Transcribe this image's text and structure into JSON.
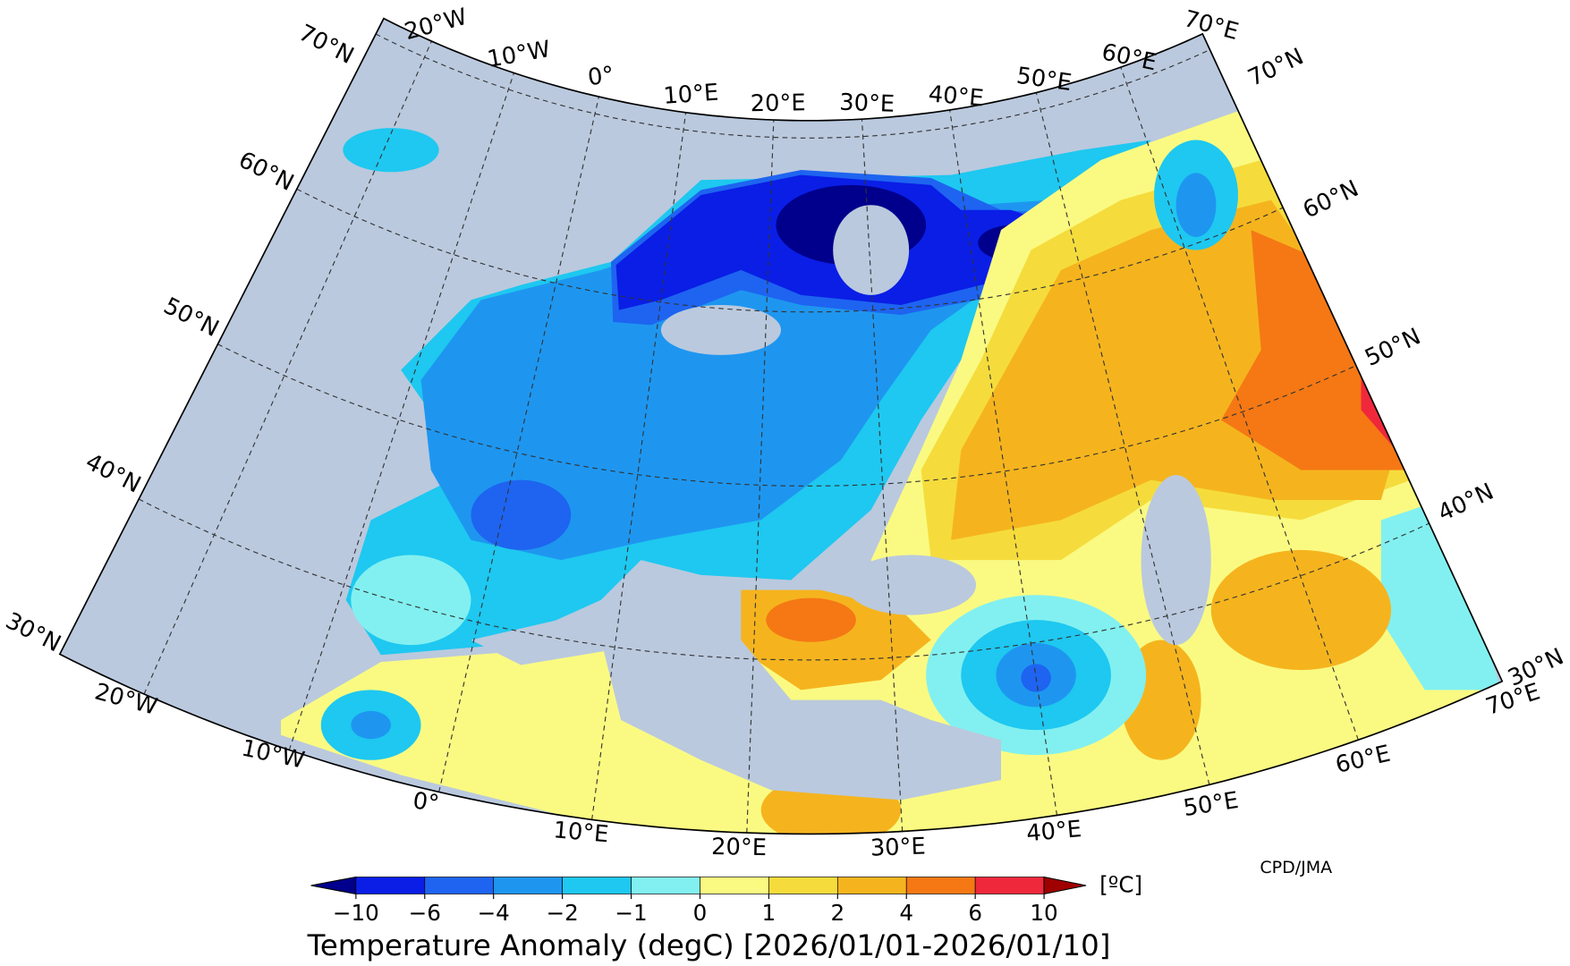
{
  "map": {
    "top_longitude_labels": [
      "20°W",
      "10°W",
      "0°",
      "10°E",
      "20°E",
      "30°E",
      "40°E",
      "50°E",
      "60°E",
      "70°E"
    ],
    "bottom_longitude_labels": [
      "20°W",
      "10°W",
      "0°",
      "10°E",
      "20°E",
      "30°E",
      "40°E",
      "50°E",
      "60°E",
      "70°E"
    ],
    "left_latitude_labels": [
      "70°N",
      "60°N",
      "50°N",
      "40°N",
      "30°N"
    ],
    "right_latitude_labels": [
      "70°N",
      "60°N",
      "50°N",
      "40°N",
      "30°N"
    ]
  },
  "colorbar": {
    "levels": [
      {
        "value": -10,
        "label": "−10"
      },
      {
        "value": -6,
        "label": "−6"
      },
      {
        "value": -4,
        "label": "−4"
      },
      {
        "value": -2,
        "label": "−2"
      },
      {
        "value": -1,
        "label": "−1"
      },
      0,
      1,
      2,
      4,
      6,
      10
    ],
    "colors": [
      "#00008c",
      "#0a1ee6",
      "#1e64f0",
      "#1e96f0",
      "#1ec8f0",
      "#82f0f0",
      "#fafa82",
      "#f5dc3c",
      "#f5b41e",
      "#f57814",
      "#f0283c",
      "#a00000"
    ],
    "unit": "[ºC]"
  },
  "title": "Temperature Anomaly (degC) [2026/01/01-2026/01/10]",
  "credit": "CPD/JMA"
}
